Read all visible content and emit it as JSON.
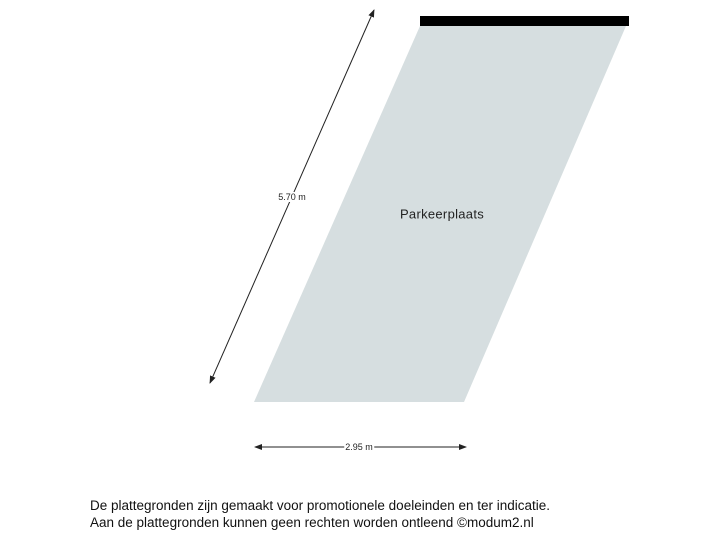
{
  "floorplan": {
    "rooms": [
      {
        "name": "Parkeerplaats",
        "fill": "#d6dee0"
      }
    ],
    "dimensions": {
      "length": "5.70 m",
      "width": "2.95 m"
    },
    "wall_color": "#000000"
  },
  "footer": {
    "line1": "De plattegronden zijn gemaakt voor promotionele doeleinden en ter indicatie.",
    "line2": "Aan de plattegronden kunnen geen rechten worden ontleend ©modum2.nl"
  }
}
